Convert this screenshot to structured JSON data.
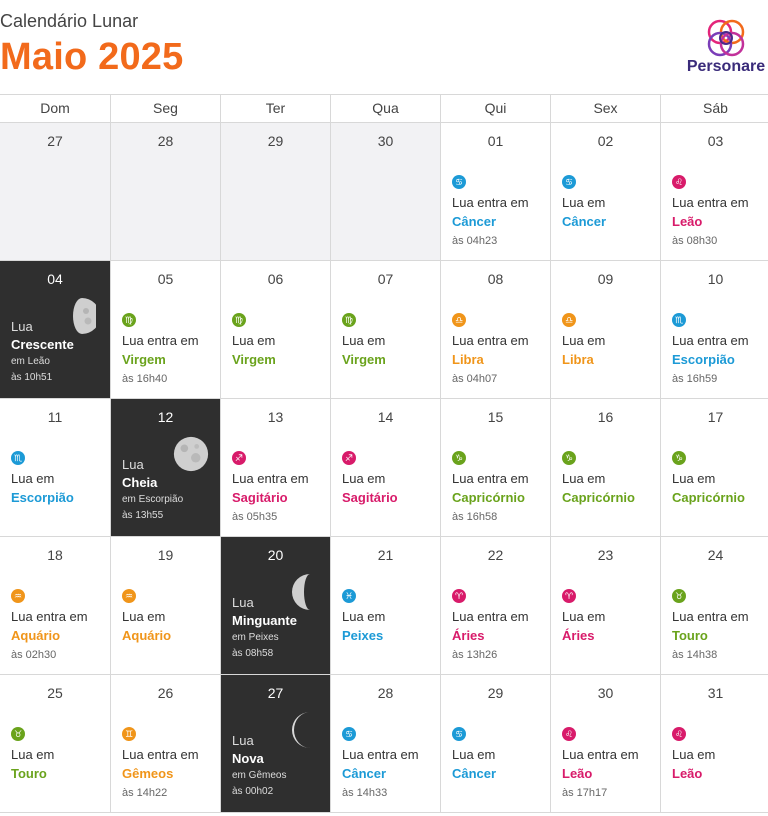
{
  "header": {
    "supertitle": "Calendário Lunar",
    "title": "Maio 2025",
    "brand": "Personare"
  },
  "weekdays": [
    "Dom",
    "Seg",
    "Ter",
    "Qua",
    "Qui",
    "Sex",
    "Sáb"
  ],
  "colors": {
    "title": "#f26a1b",
    "Câncer": "#1c9ad6",
    "Leão": "#d81b6a",
    "Virgem": "#6aa31c",
    "Libra": "#f0951a",
    "Escorpião": "#1c9ad6",
    "Sagitário": "#d81b6a",
    "Capricórnio": "#6aa31c",
    "Aquário": "#f0951a",
    "Peixes": "#1c9ad6",
    "Áries": "#d81b6a",
    "Touro": "#6aa31c",
    "Gêmeos": "#f0951a",
    "phase_bg": "#2f2f2f"
  },
  "weeks": [
    [
      {
        "d": "27",
        "empty": true
      },
      {
        "d": "28",
        "empty": true
      },
      {
        "d": "29",
        "empty": true
      },
      {
        "d": "30",
        "empty": true
      },
      {
        "d": "01",
        "text": "Lua entra em",
        "sign": "Câncer",
        "time": "às 04h23"
      },
      {
        "d": "02",
        "text": "Lua em",
        "sign": "Câncer"
      },
      {
        "d": "03",
        "text": "Lua entra em",
        "sign": "Leão",
        "time": "às 08h30"
      }
    ],
    [
      {
        "d": "04",
        "phase": true,
        "moon": "crescent-first-quarter-icon",
        "label": "Lua",
        "name": "Crescente",
        "in": "em Leão",
        "time": "às 10h51"
      },
      {
        "d": "05",
        "text": "Lua entra em",
        "sign": "Virgem",
        "time": "às 16h40"
      },
      {
        "d": "06",
        "text": "Lua em",
        "sign": "Virgem"
      },
      {
        "d": "07",
        "text": "Lua em",
        "sign": "Virgem"
      },
      {
        "d": "08",
        "text": "Lua entra em",
        "sign": "Libra",
        "time": "às 04h07"
      },
      {
        "d": "09",
        "text": "Lua em",
        "sign": "Libra"
      },
      {
        "d": "10",
        "text": "Lua entra em",
        "sign": "Escorpião",
        "time": "às 16h59"
      }
    ],
    [
      {
        "d": "11",
        "text": "Lua em",
        "sign": "Escorpião"
      },
      {
        "d": "12",
        "phase": true,
        "moon": "full-moon-icon",
        "label": "Lua",
        "name": "Cheia",
        "in": "em Escorpião",
        "time": "às 13h55"
      },
      {
        "d": "13",
        "text": "Lua entra em",
        "sign": "Sagitário",
        "time": "às 05h35"
      },
      {
        "d": "14",
        "text": "Lua em",
        "sign": "Sagitário"
      },
      {
        "d": "15",
        "text": "Lua entra em",
        "sign": "Capricórnio",
        "time": "às 16h58"
      },
      {
        "d": "16",
        "text": "Lua em",
        "sign": "Capricórnio"
      },
      {
        "d": "17",
        "text": "Lua em",
        "sign": "Capricórnio"
      }
    ],
    [
      {
        "d": "18",
        "text": "Lua entra em",
        "sign": "Aquário",
        "time": "às 02h30"
      },
      {
        "d": "19",
        "text": "Lua em",
        "sign": "Aquário"
      },
      {
        "d": "20",
        "phase": true,
        "moon": "last-quarter-moon-icon",
        "label": "Lua",
        "name": "Minguante",
        "in": "em Peixes",
        "time": "às 08h58"
      },
      {
        "d": "21",
        "text": "Lua em",
        "sign": "Peixes"
      },
      {
        "d": "22",
        "text": "Lua entra em",
        "sign": "Áries",
        "time": "às 13h26"
      },
      {
        "d": "23",
        "text": "Lua em",
        "sign": "Áries"
      },
      {
        "d": "24",
        "text": "Lua entra em",
        "sign": "Touro",
        "time": "às 14h38"
      }
    ],
    [
      {
        "d": "25",
        "text": "Lua em",
        "sign": "Touro"
      },
      {
        "d": "26",
        "text": "Lua entra em",
        "sign": "Gêmeos",
        "time": "às 14h22"
      },
      {
        "d": "27",
        "phase": true,
        "moon": "new-moon-icon",
        "label": "Lua",
        "name": "Nova",
        "in": "em Gêmeos",
        "time": "às 00h02"
      },
      {
        "d": "28",
        "text": "Lua entra em",
        "sign": "Câncer",
        "time": "às 14h33"
      },
      {
        "d": "29",
        "text": "Lua em",
        "sign": "Câncer"
      },
      {
        "d": "30",
        "text": "Lua entra em",
        "sign": "Leão",
        "time": "às 17h17"
      },
      {
        "d": "31",
        "text": "Lua em",
        "sign": "Leão"
      }
    ]
  ]
}
